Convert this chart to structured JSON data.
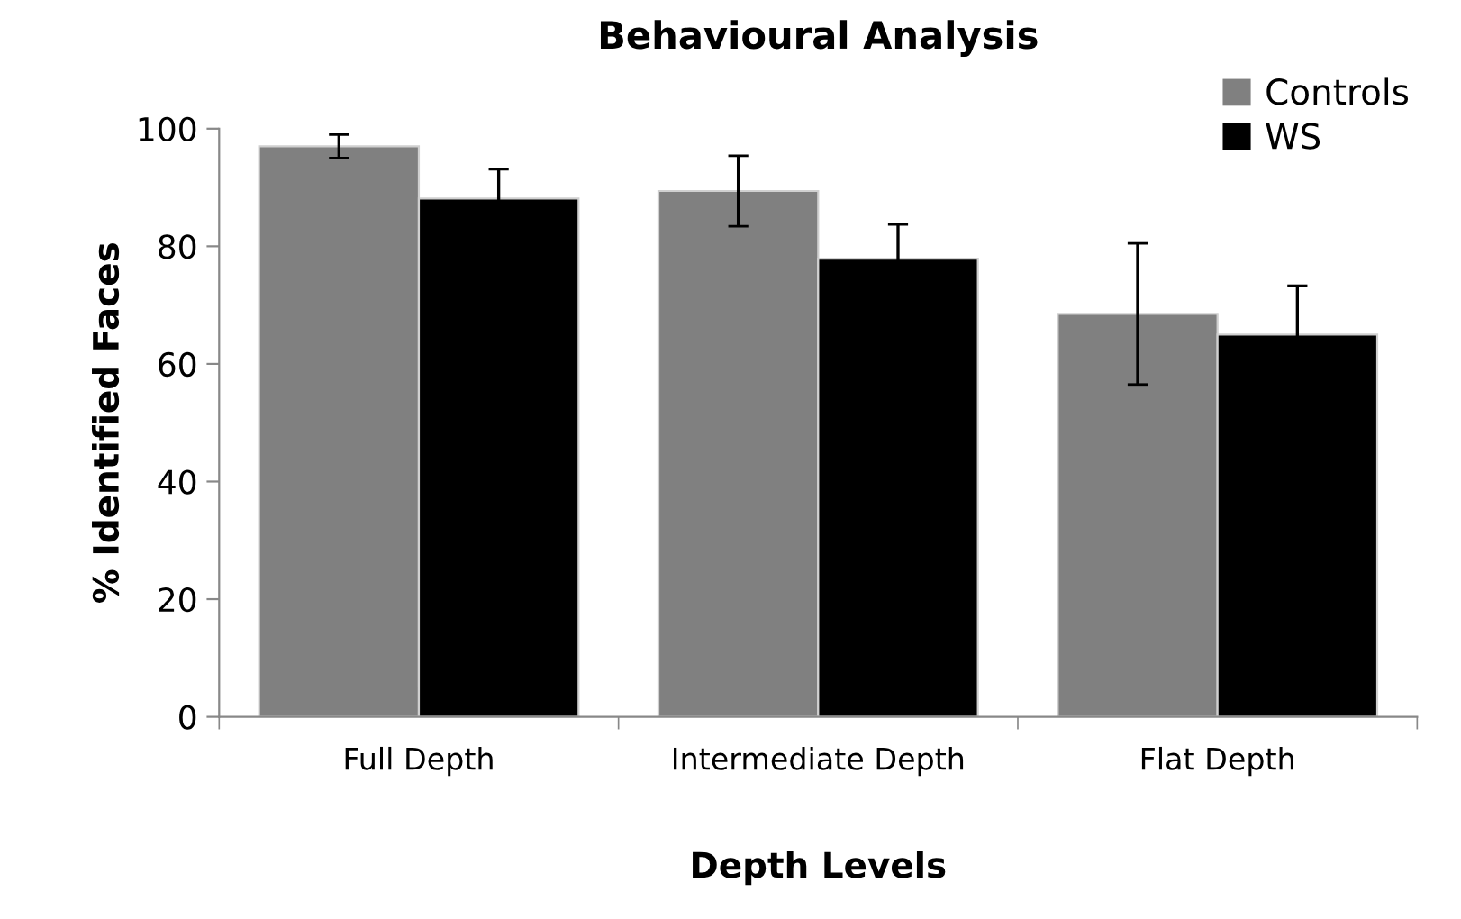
{
  "chart_data": {
    "type": "bar",
    "title": "Behavioural Analysis",
    "xlabel": "Depth Levels",
    "ylabel": "% Identified Faces",
    "categories": [
      "Full Depth",
      "Intermediate Depth",
      "Flat Depth"
    ],
    "series": [
      {
        "name": "Controls",
        "color": "#808080",
        "values": [
          97.0,
          89.4,
          68.5
        ],
        "errors": [
          2.0,
          6.0,
          12.0
        ]
      },
      {
        "name": "WS",
        "color": "#000000",
        "values": [
          88.1,
          77.9,
          65.0
        ],
        "errors": [
          5.0,
          5.8,
          8.3
        ]
      }
    ],
    "ylim": [
      0,
      100
    ],
    "yticks": [
      0,
      20,
      40,
      60,
      80,
      100
    ],
    "grid": false,
    "legend": "top right"
  }
}
